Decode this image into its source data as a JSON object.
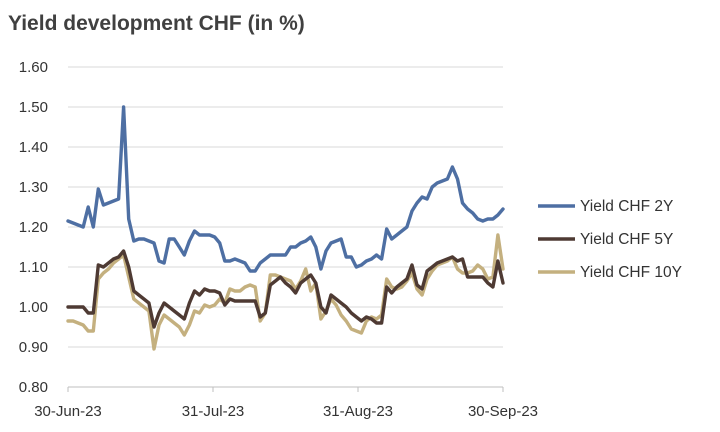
{
  "chart_data": {
    "type": "line",
    "title": "Yield development CHF (in %)",
    "xlabel": "",
    "ylabel": "",
    "ylim": [
      0.8,
      1.6
    ],
    "yticks": [
      "0.80",
      "0.90",
      "1.00",
      "1.10",
      "1.20",
      "1.30",
      "1.40",
      "1.50",
      "1.60"
    ],
    "xticks": [
      "30-Jun-23",
      "31-Jul-23",
      "31-Aug-23",
      "30-Sep-23"
    ],
    "grid": "horizontal",
    "legend_position": "right",
    "series": [
      {
        "name": "Yield CHF 2Y",
        "color": "#4e6fa3",
        "values": [
          1.215,
          1.21,
          1.205,
          1.2,
          1.25,
          1.2,
          1.295,
          1.255,
          1.26,
          1.265,
          1.27,
          1.5,
          1.22,
          1.165,
          1.17,
          1.17,
          1.165,
          1.16,
          1.115,
          1.11,
          1.17,
          1.17,
          1.15,
          1.13,
          1.165,
          1.19,
          1.18,
          1.18,
          1.18,
          1.175,
          1.16,
          1.115,
          1.115,
          1.12,
          1.115,
          1.11,
          1.09,
          1.09,
          1.11,
          1.12,
          1.13,
          1.13,
          1.13,
          1.13,
          1.15,
          1.15,
          1.16,
          1.165,
          1.175,
          1.15,
          1.095,
          1.14,
          1.16,
          1.165,
          1.17,
          1.125,
          1.125,
          1.1,
          1.105,
          1.115,
          1.12,
          1.13,
          1.12,
          1.195,
          1.17,
          1.18,
          1.19,
          1.2,
          1.24,
          1.26,
          1.275,
          1.27,
          1.3,
          1.31,
          1.315,
          1.32,
          1.35,
          1.32,
          1.26,
          1.245,
          1.235,
          1.22,
          1.215,
          1.22,
          1.22,
          1.23,
          1.245
        ]
      },
      {
        "name": "Yield CHF 5Y",
        "color": "#4e3a33",
        "values": [
          1.0,
          1.0,
          1.0,
          1.0,
          0.985,
          0.985,
          1.105,
          1.1,
          1.11,
          1.12,
          1.125,
          1.14,
          1.1,
          1.04,
          1.03,
          1.02,
          1.01,
          0.95,
          0.985,
          1.01,
          1.0,
          0.99,
          0.98,
          0.97,
          1.01,
          1.04,
          1.03,
          1.045,
          1.04,
          1.04,
          1.035,
          1.005,
          1.02,
          1.015,
          1.015,
          1.015,
          1.015,
          1.015,
          0.975,
          0.985,
          1.055,
          1.065,
          1.075,
          1.06,
          1.05,
          1.035,
          1.06,
          1.07,
          1.08,
          1.06,
          1.0,
          0.985,
          1.03,
          1.02,
          1.01,
          1.0,
          0.985,
          0.975,
          0.965,
          0.975,
          0.97,
          0.96,
          0.96,
          1.05,
          1.035,
          1.05,
          1.06,
          1.07,
          1.105,
          1.055,
          1.045,
          1.09,
          1.1,
          1.11,
          1.115,
          1.12,
          1.125,
          1.115,
          1.12,
          1.075,
          1.075,
          1.075,
          1.075,
          1.06,
          1.05,
          1.115,
          1.06
        ]
      },
      {
        "name": "Yield CHF 10Y",
        "color": "#c4b07f",
        "values": [
          0.965,
          0.965,
          0.96,
          0.955,
          0.94,
          0.94,
          1.07,
          1.085,
          1.095,
          1.11,
          1.12,
          1.13,
          1.075,
          1.02,
          1.01,
          1.0,
          0.99,
          0.895,
          0.955,
          0.98,
          0.97,
          0.96,
          0.95,
          0.93,
          0.955,
          0.99,
          0.985,
          1.005,
          1.0,
          1.005,
          1.02,
          1.01,
          1.045,
          1.04,
          1.04,
          1.05,
          1.055,
          1.05,
          0.965,
          0.985,
          1.08,
          1.08,
          1.075,
          1.07,
          1.065,
          1.045,
          1.065,
          1.095,
          1.04,
          1.06,
          0.97,
          0.99,
          1.02,
          1.005,
          0.98,
          0.965,
          0.945,
          0.94,
          0.935,
          0.965,
          0.975,
          0.97,
          0.98,
          1.07,
          1.05,
          1.045,
          1.05,
          1.065,
          1.085,
          1.045,
          1.03,
          1.07,
          1.09,
          1.105,
          1.11,
          1.115,
          1.125,
          1.095,
          1.085,
          1.085,
          1.09,
          1.105,
          1.095,
          1.07,
          1.075,
          1.18,
          1.095
        ]
      }
    ]
  }
}
